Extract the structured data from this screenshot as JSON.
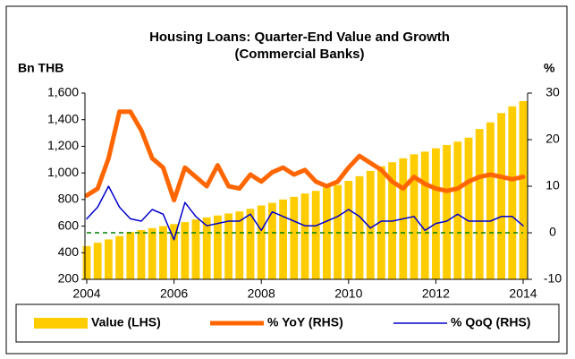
{
  "chart_data": {
    "type": "combo",
    "title": [
      "Housing Loans: Quarter-End Value and Growth",
      "(Commercial Banks)"
    ],
    "y_label": "Bn THB",
    "y2_label": "%",
    "x": [
      2004,
      2004.25,
      2004.5,
      2004.75,
      2005,
      2005.25,
      2005.5,
      2005.75,
      2006,
      2006.25,
      2006.5,
      2006.75,
      2007,
      2007.25,
      2007.5,
      2007.75,
      2008,
      2008.25,
      2008.5,
      2008.75,
      2009,
      2009.25,
      2009.5,
      2009.75,
      2010,
      2010.25,
      2010.5,
      2010.75,
      2011,
      2011.25,
      2011.5,
      2011.75,
      2012,
      2012.25,
      2012.5,
      2012.75,
      2013,
      2013.25,
      2013.5,
      2013.75,
      2014
    ],
    "series": [
      {
        "name": "Value (LHS)",
        "type": "bar",
        "color": "#ffcc00",
        "values": [
          450,
          475,
          500,
          525,
          555,
          570,
          585,
          600,
          615,
          630,
          650,
          665,
          680,
          695,
          710,
          730,
          755,
          775,
          800,
          820,
          845,
          865,
          890,
          910,
          940,
          975,
          1015,
          1050,
          1080,
          1110,
          1140,
          1160,
          1185,
          1210,
          1235,
          1265,
          1330,
          1380,
          1450,
          1500,
          1540
        ]
      },
      {
        "name": "% YoY (RHS)",
        "type": "line",
        "axis": "y2",
        "color": "#ff6600",
        "width": 5,
        "values": [
          8,
          9.5,
          16,
          26,
          26,
          22,
          16,
          14,
          7,
          14,
          12,
          10,
          14.5,
          10,
          9.5,
          12.5,
          11,
          13,
          14,
          12.5,
          13.5,
          11,
          10,
          11,
          14,
          16.5,
          15,
          13.5,
          11,
          9.5,
          12,
          10.5,
          9.5,
          9,
          9.5,
          11,
          12,
          12.5,
          12,
          11.5,
          12
        ]
      },
      {
        "name": "% QoQ (RHS)",
        "type": "line",
        "axis": "y2",
        "color": "#0000cc",
        "width": 1.5,
        "values": [
          3,
          5.5,
          10,
          5.5,
          3,
          2.5,
          5,
          4,
          -1.5,
          6.5,
          3.5,
          1.5,
          2,
          2.5,
          2.5,
          4,
          0.5,
          4.5,
          3.5,
          2.5,
          1.5,
          1.5,
          2.5,
          3.5,
          5,
          3.5,
          1,
          2.5,
          2.5,
          3,
          3.5,
          0.5,
          2,
          2.5,
          4,
          2.5,
          2.5,
          2.5,
          3.5,
          3.5,
          1.5
        ]
      }
    ],
    "reference_line": {
      "value": 0,
      "axis": "y2",
      "color": "#008000"
    },
    "xlim": [
      2004,
      2014
    ],
    "xticks": [
      2004,
      2006,
      2008,
      2010,
      2012,
      2014
    ],
    "ylim": [
      200,
      1600
    ],
    "yticks": [
      200,
      {
        "value": 400,
        "label": "400"
      },
      600,
      800,
      {
        "value": 1000,
        "label": "1,000"
      },
      {
        "value": 1200,
        "label": "1,200"
      },
      {
        "value": 1400,
        "label": "1,400"
      },
      {
        "value": 1600,
        "label": "1,600"
      }
    ],
    "y2lim": [
      -10,
      30
    ],
    "y2ticks": [
      -10,
      0,
      10,
      20,
      30
    ],
    "legend": "bottom"
  }
}
